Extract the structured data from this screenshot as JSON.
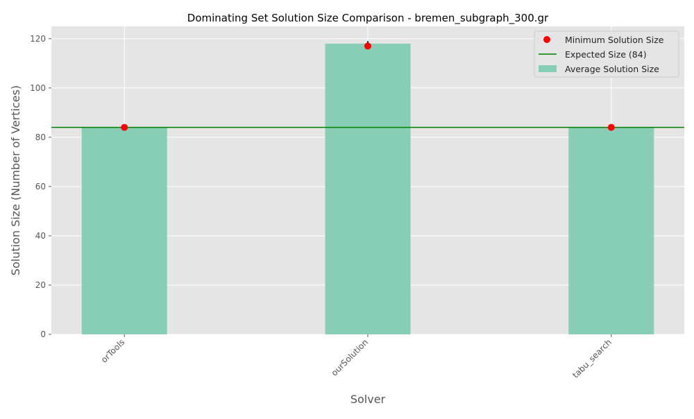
{
  "chart_data": {
    "type": "bar",
    "title": "Dominating Set Solution Size Comparison - bremen_subgraph_300.gr",
    "xlabel": "Solver",
    "ylabel": "Solution Size (Number of Vertices)",
    "categories": [
      "orTools",
      "ourSolution",
      "tabu_search"
    ],
    "series": [
      {
        "name": "Average Solution Size",
        "type": "bar",
        "values": [
          84,
          118,
          84
        ],
        "error": [
          0,
          1,
          0
        ],
        "color": "#88cdb6"
      },
      {
        "name": "Minimum Solution Size",
        "type": "scatter",
        "values": [
          84,
          117,
          84
        ],
        "color": "#ff0000"
      }
    ],
    "reference_line": {
      "name": "Expected Size (84)",
      "value": 84,
      "color": "#008000"
    },
    "ylim": [
      0,
      125
    ],
    "yticks": [
      0,
      20,
      40,
      60,
      80,
      100,
      120
    ],
    "grid": true,
    "legend_position": "top-right",
    "background_color": "#e5e5e5",
    "grid_color": "#ffffff"
  }
}
